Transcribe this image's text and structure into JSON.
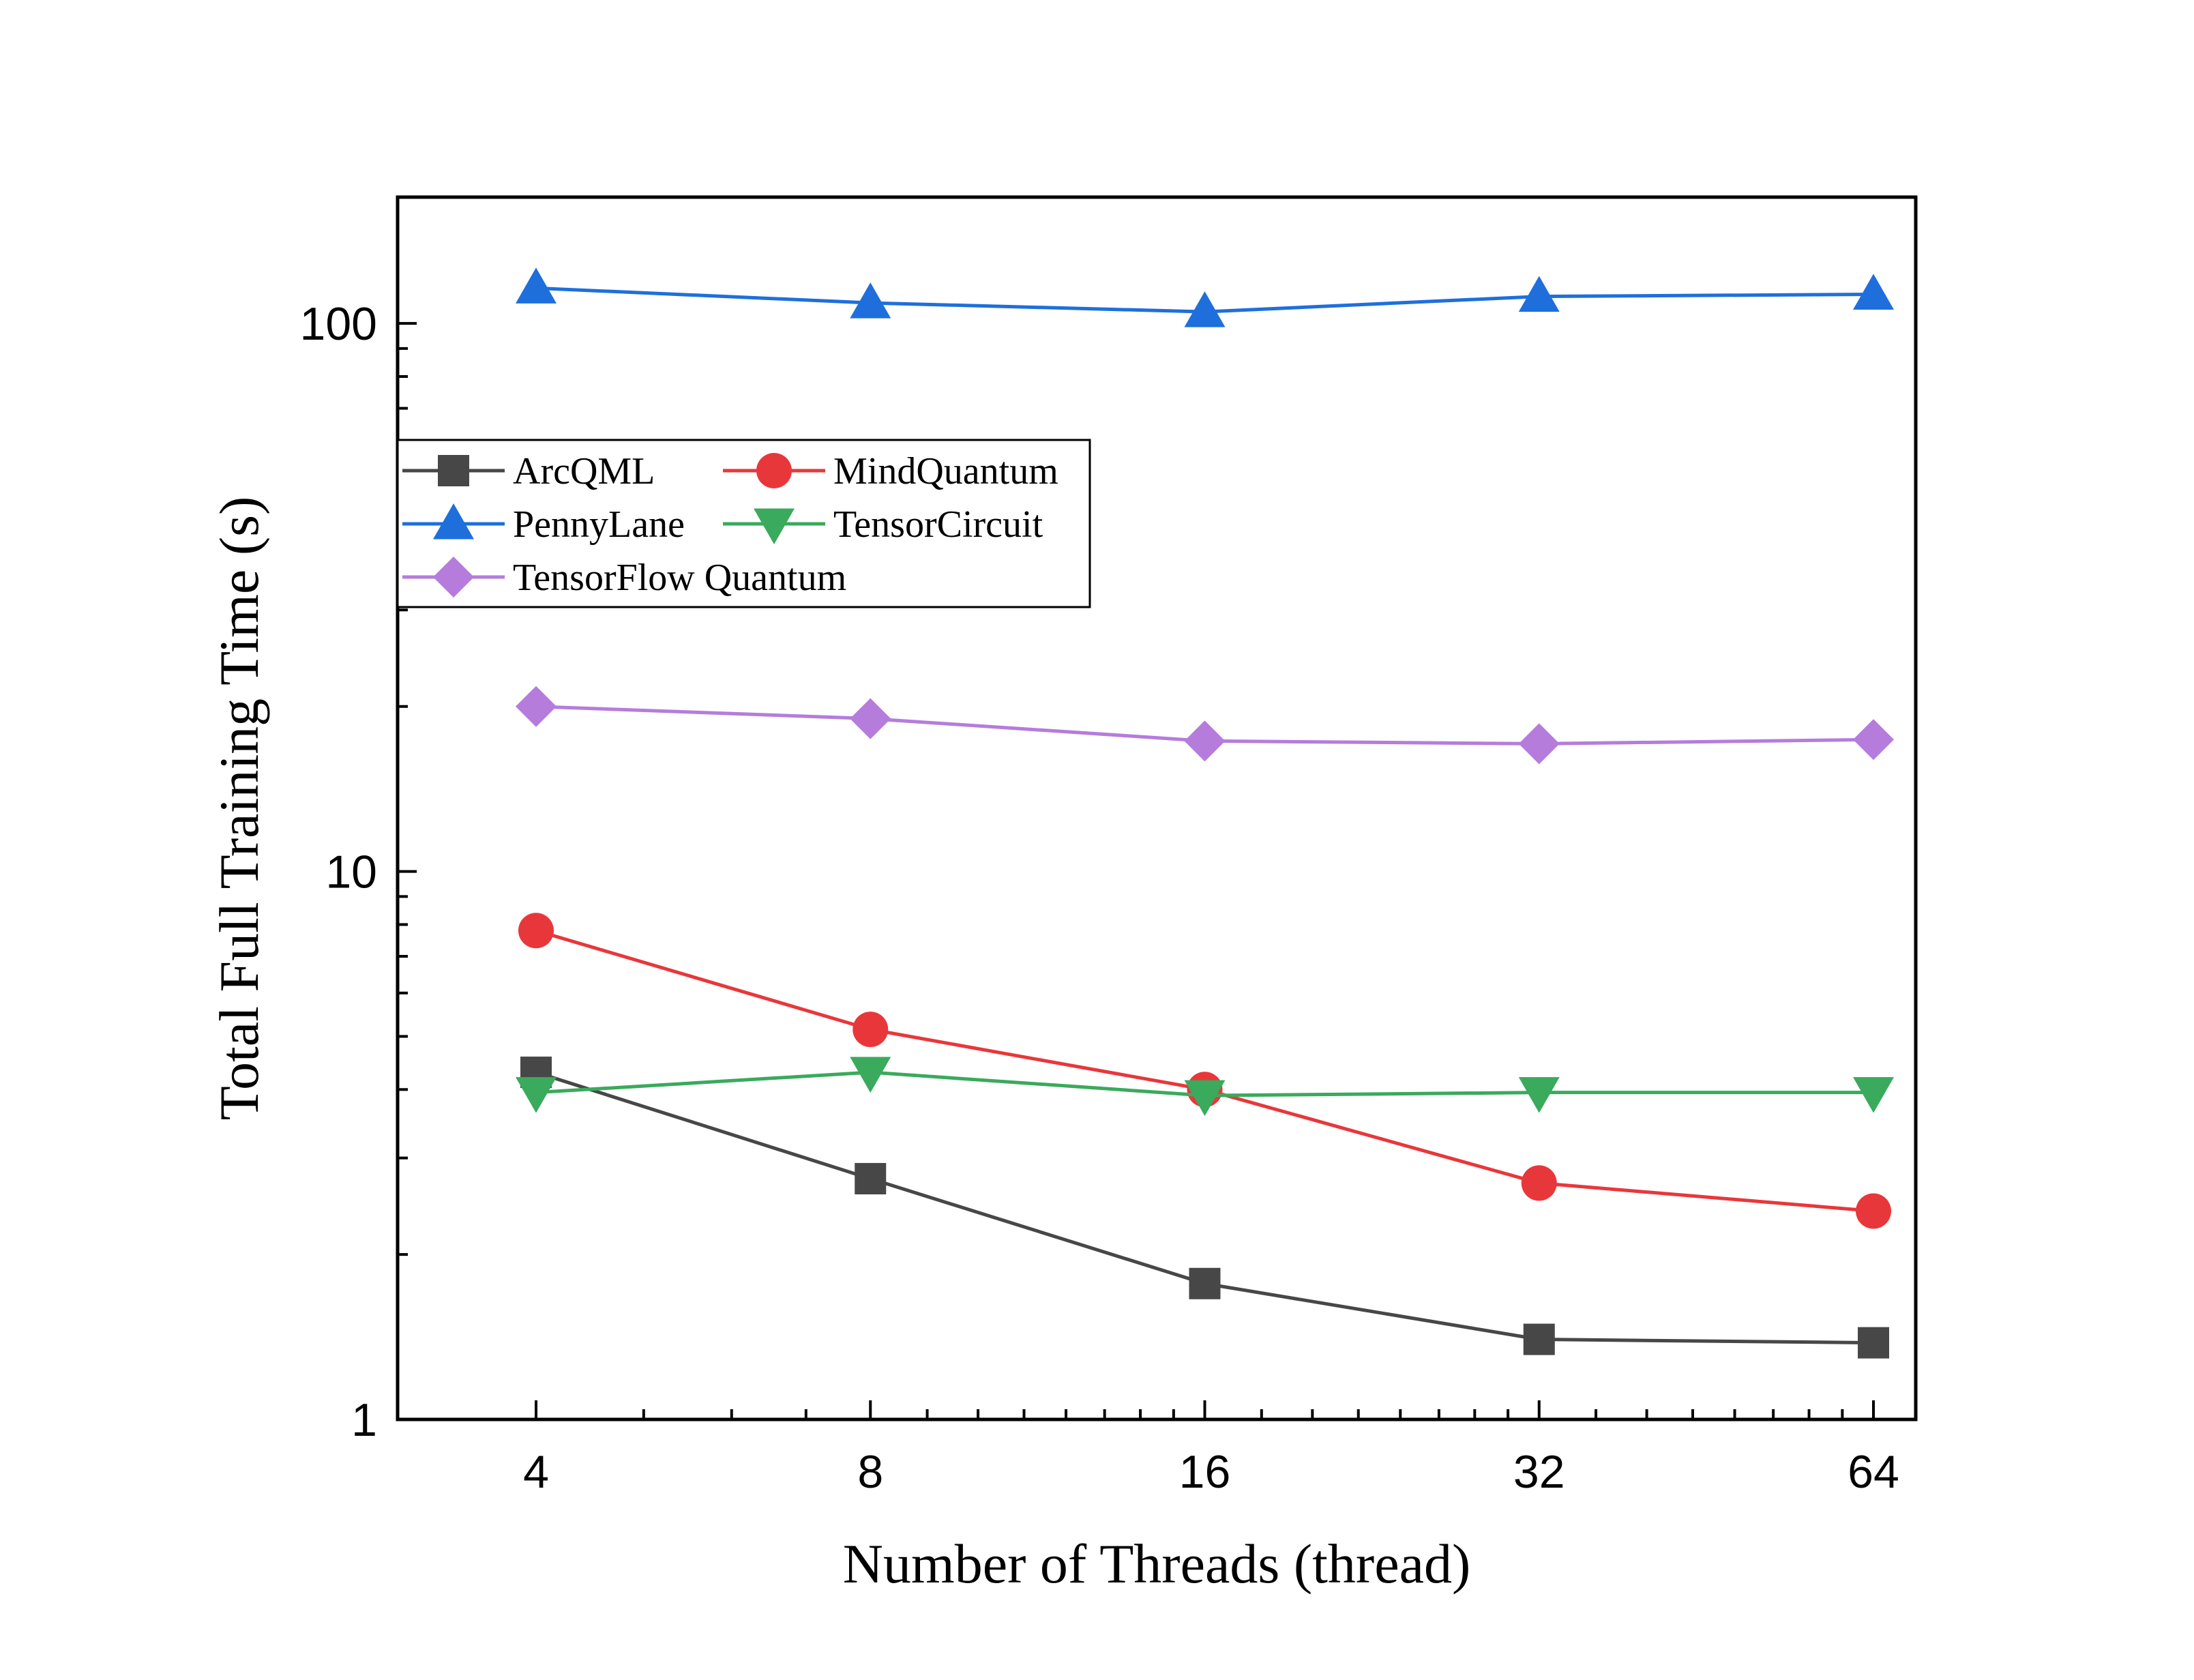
{
  "chart_data": {
    "type": "line",
    "title": "",
    "xlabel": "Number of Threads (thread)",
    "ylabel": "Total Full Training Time (s)",
    "x_scale": "log2",
    "y_scale": "log10",
    "xlim": [
      4,
      64
    ],
    "ylim": [
      1,
      170
    ],
    "x": [
      4,
      8,
      16,
      32,
      64
    ],
    "x_tick_labels": [
      "4",
      "8",
      "16",
      "32",
      "64"
    ],
    "y_ticks": [
      1,
      10,
      100
    ],
    "y_tick_labels": [
      "1",
      "10",
      "100"
    ],
    "grid": false,
    "legend_position": "upper-left",
    "series": [
      {
        "name": "ArcQML",
        "color": "#474747",
        "marker": "square",
        "values": [
          4.3,
          2.75,
          1.77,
          1.4,
          1.38
        ]
      },
      {
        "name": "MindQuantum",
        "color": "#e8373b",
        "marker": "circle",
        "values": [
          7.8,
          5.15,
          4.0,
          2.7,
          2.4
        ]
      },
      {
        "name": "PennyLane",
        "color": "#1e6fdc",
        "marker": "triangle-up",
        "values": [
          116,
          109,
          105,
          112,
          113
        ]
      },
      {
        "name": "TensorCircuit",
        "color": "#3aaa5c",
        "marker": "triangle-down",
        "values": [
          3.95,
          4.3,
          3.9,
          3.95,
          3.95
        ]
      },
      {
        "name": "TensorFlow Quantum",
        "color": "#b57cdc",
        "marker": "diamond",
        "values": [
          20,
          19,
          17.3,
          17.1,
          17.4
        ]
      }
    ]
  }
}
